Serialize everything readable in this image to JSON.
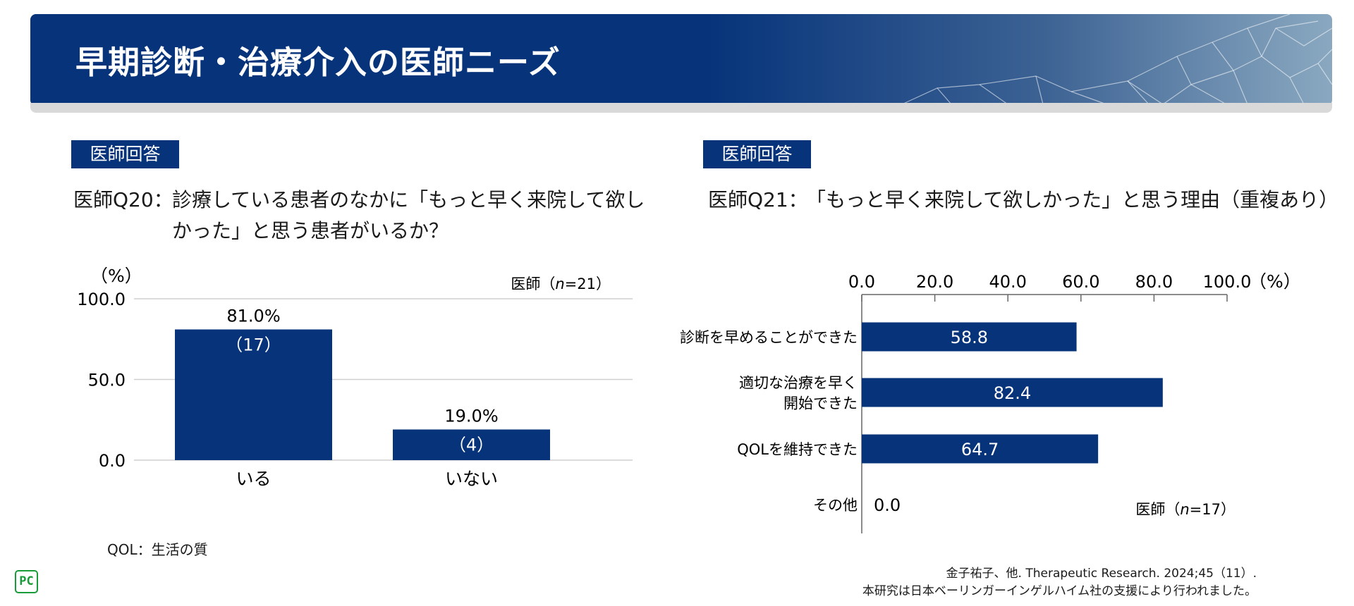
{
  "page_title": "早期診断・治療介入の医師ニーズ",
  "left": {
    "tag": "医師回答",
    "question_prefix": "医師Q20：",
    "question_line1": "診療している患者のなかに「もっと早く来院して欲し",
    "question_line2": "かった」と思う患者がいるか？"
  },
  "right": {
    "tag": "医師回答",
    "question_prefix": "医師Q21：",
    "question_line1": "「もっと早く来院して欲しかった」と思う理由（重複あり）"
  },
  "chart_data": [
    {
      "type": "bar",
      "categories": [
        "いる",
        "いない"
      ],
      "values": [
        81.0,
        19.0
      ],
      "value_labels": [
        "81.0%",
        "19.0%"
      ],
      "count_labels": [
        "（17）",
        "（4）"
      ],
      "ylabel": "（%）",
      "ylim": [
        0,
        100
      ],
      "yticks": [
        "0.0",
        "50.0",
        "100.0"
      ],
      "ytick_values": [
        0,
        50,
        100
      ],
      "grid": true,
      "sample_prefix": "医師（",
      "sample_n": "n",
      "sample_suffix": "=21）",
      "bar_color": "#06337a"
    },
    {
      "type": "bar",
      "orientation": "horizontal",
      "categories": [
        "診断を早めることができた",
        "適切な治療を早く開始できた",
        "QOLを維持できた",
        "その他"
      ],
      "category_lines": [
        [
          "診断を早めることができた"
        ],
        [
          "適切な治療を早く",
          "開始できた"
        ],
        [
          "QOLを維持できた"
        ],
        [
          "その他"
        ]
      ],
      "values": [
        58.8,
        82.4,
        64.7,
        0.0
      ],
      "value_labels": [
        "58.8",
        "82.4",
        "64.7",
        "0.0"
      ],
      "xlabel": "（%）",
      "xlim": [
        0,
        100
      ],
      "xticks": [
        "0.0",
        "20.0",
        "40.0",
        "60.0",
        "80.0",
        "100.0"
      ],
      "xtick_values": [
        0,
        20,
        40,
        60,
        80,
        100
      ],
      "sample_prefix": "医師（",
      "sample_n": "n",
      "sample_suffix": "=17）",
      "bar_color": "#06337a"
    }
  ],
  "footnote": "QOL：生活の質",
  "source_line1": "金子祐子、他. Therapeutic Research. 2024;45（11）.",
  "source_line2": "本研究は日本ベーリンガーインゲルハイム社の支援により行われました。",
  "logo_text": "PC",
  "colors": {
    "brand": "#06337a",
    "logo": "#1a9b3a"
  }
}
